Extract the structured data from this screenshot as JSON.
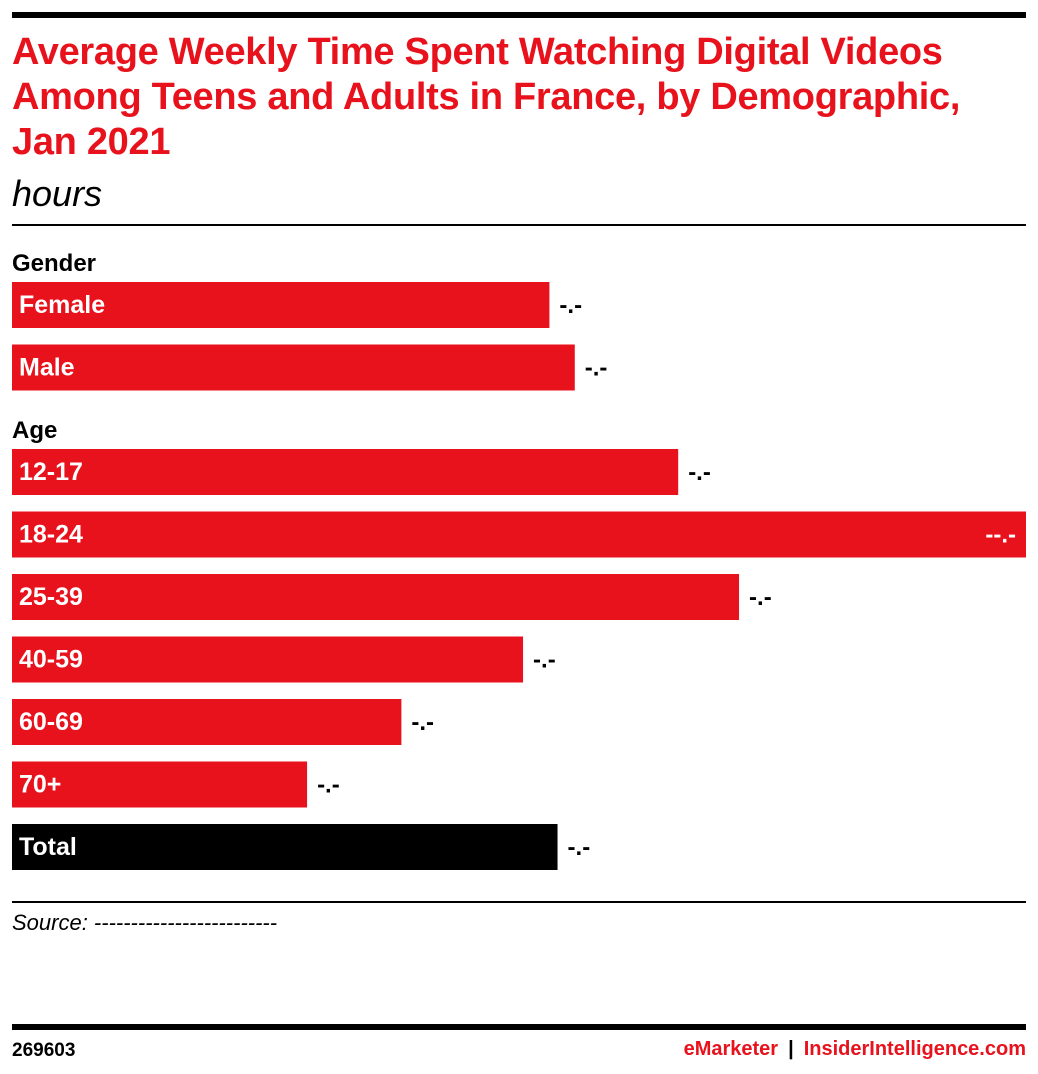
{
  "title": "Average Weekly Time Spent Watching Digital Videos Among Teens and Adults in France, by Demographic, Jan 2021",
  "subtitle": "hours",
  "source": "Source: -------------------------",
  "footer": {
    "chart_id": "269603",
    "brand_left": "eMarketer",
    "separator": "|",
    "brand_right": "InsiderIntelligence.com"
  },
  "colors": {
    "accent": "#e8121d",
    "total": "#000000",
    "text": "#000000"
  },
  "chart_data": {
    "type": "bar",
    "orientation": "horizontal",
    "groups": [
      {
        "label": "Gender",
        "bars": [
          {
            "category": "Female",
            "value": 5.3,
            "label": "-.-",
            "color": "#e8121d"
          },
          {
            "category": "Male",
            "value": 5.55,
            "label": "-.-",
            "color": "#e8121d"
          }
        ]
      },
      {
        "label": "Age",
        "bars": [
          {
            "category": "12-17",
            "value": 6.57,
            "label": "-.-",
            "color": "#e8121d"
          },
          {
            "category": "18-24",
            "value": 10.0,
            "label": "--.-",
            "color": "#e8121d"
          },
          {
            "category": "25-39",
            "value": 7.17,
            "label": "-.-",
            "color": "#e8121d"
          },
          {
            "category": "40-59",
            "value": 5.04,
            "label": "-.-",
            "color": "#e8121d"
          },
          {
            "category": "60-69",
            "value": 3.84,
            "label": "-.-",
            "color": "#e8121d"
          },
          {
            "category": "70+",
            "value": 2.91,
            "label": "-.-",
            "color": "#e8121d"
          }
        ]
      },
      {
        "label": "",
        "bars": [
          {
            "category": "Total",
            "value": 5.38,
            "label": "-.-",
            "color": "#000000"
          }
        ]
      }
    ],
    "xlim": [
      0,
      10
    ]
  }
}
